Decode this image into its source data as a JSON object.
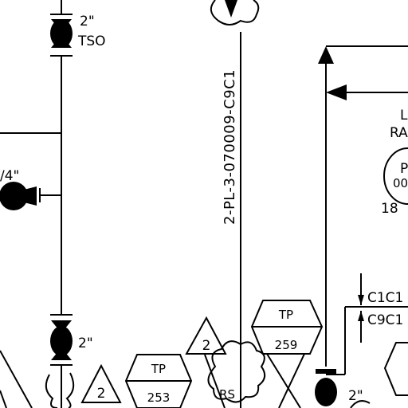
{
  "valves": {
    "top_size": "2\"",
    "top_type": "TSO",
    "left_size": "/4\"",
    "mid_size": "2\"",
    "bottom_right_size": "2\""
  },
  "line_id": "2-PL-3-070009-C9C1",
  "tags": {
    "tp_left_top": "TP",
    "tp_left_num": "253",
    "tp_right_top": "TP",
    "tp_right_num": "259",
    "tri_left": "2",
    "tri_mid": "2",
    "rs": "RS"
  },
  "instrument": {
    "label_line1": "L",
    "label_line2": "RA",
    "bubble_top": "P",
    "bubble_bottom": "00",
    "bubble_side": "18"
  },
  "spec_break": {
    "upper": "C1C1",
    "lower": "C9C1"
  },
  "colors": {
    "ink": "#000000",
    "paper": "#ffffff"
  }
}
